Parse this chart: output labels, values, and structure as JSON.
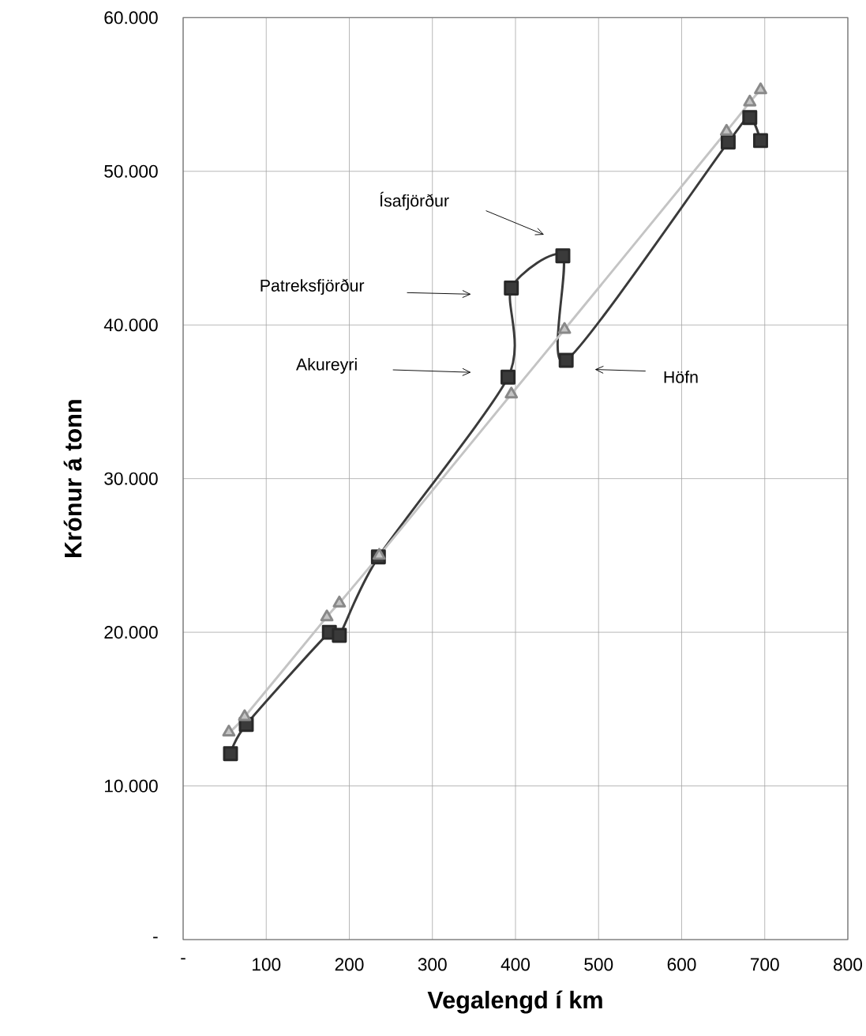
{
  "chart_data": {
    "type": "line",
    "xlabel": "Vegalengd í km",
    "ylabel": "Krónur á tonn",
    "xlim": [
      0,
      800
    ],
    "ylim": [
      0,
      60000
    ],
    "xticks": [
      {
        "value": 0,
        "label": "-"
      },
      100,
      200,
      300,
      400,
      500,
      600,
      700,
      800
    ],
    "yticks": [
      {
        "value": 0,
        "label": "-"
      },
      {
        "value": 10000,
        "label": "10.000"
      },
      {
        "value": 20000,
        "label": "20.000"
      },
      {
        "value": 30000,
        "label": "30.000"
      },
      {
        "value": 40000,
        "label": "40.000"
      },
      {
        "value": 50000,
        "label": "50.000"
      },
      {
        "value": 60000,
        "label": "60.000"
      }
    ],
    "grid": true,
    "line_style": "solid",
    "series": [
      {
        "color": "#3a3a3a",
        "marker": "square",
        "x": [
          57,
          76,
          176,
          188,
          235,
          391,
          395,
          457,
          461,
          656,
          682,
          695
        ],
        "values": [
          12100,
          14000,
          20000,
          19800,
          24900,
          36600,
          42400,
          44500,
          37700,
          51900,
          53500,
          52000
        ]
      },
      {
        "color": "#c4c4c4",
        "marker": "triangle",
        "x": [
          55,
          74,
          173,
          188,
          236,
          395,
          459,
          654,
          682,
          695
        ],
        "values": [
          13500,
          14500,
          21000,
          21900,
          25000,
          35500,
          39700,
          52600,
          54500,
          55300
        ]
      }
    ],
    "annotations": [
      "Ísafjörður",
      "Patreksfjörður",
      "Akureyri",
      "Höfn"
    ]
  }
}
